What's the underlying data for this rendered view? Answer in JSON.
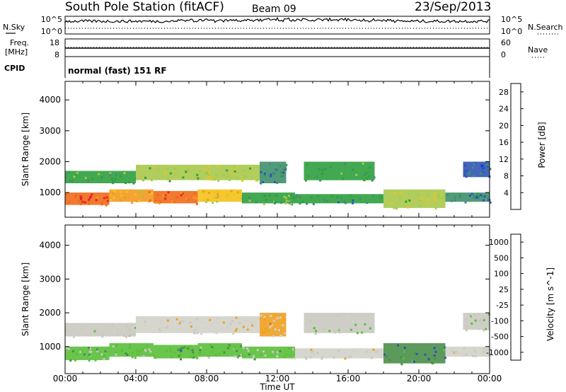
{
  "header": {
    "station": "South Pole Station (fitACF)",
    "beam": "Beam 09",
    "date": "23/Sep/2013"
  },
  "noise_panel": {
    "left_label": "N.Sky",
    "right_label": "N.Search",
    "left_ticks": [
      "10^5",
      "10^0"
    ],
    "right_ticks": [
      "10^5",
      "10^0"
    ]
  },
  "freq_panel": {
    "left_label_1": "Freq.",
    "left_label_2": "[MHz]",
    "right_label": "Nave",
    "left_ticks": [
      "18",
      "8"
    ],
    "right_ticks": [
      "60",
      "0"
    ]
  },
  "cpid": {
    "label": "CPID",
    "program": "normal (fast) 151 RF"
  },
  "x_axis": {
    "label": "Time UT",
    "ticks": [
      "00:00",
      "04:00",
      "08:00",
      "12:00",
      "16:00",
      "20:00",
      "00:00"
    ]
  },
  "colors": {
    "power": [
      "#1530e8",
      "#2f55b5",
      "#3f8f6e",
      "#2f9e3f",
      "#a8c94a",
      "#f2c21a",
      "#f39a1f",
      "#ef6a1a",
      "#e52222"
    ],
    "velocity": [
      "#1530e8",
      "#2f55b5",
      "#4a8f4a",
      "#5abf3a",
      "#c9c9c0",
      "#d2d2ca",
      "#f0a020",
      "#ef6a1a",
      "#e52222"
    ]
  },
  "chart_data": [
    {
      "type": "heatmap",
      "title": "",
      "xlabel": "",
      "ylabel": "Slant Range [km]",
      "yticks": [
        "1000",
        "2000",
        "3000",
        "4000"
      ],
      "ylim": [
        200,
        4600
      ],
      "xlim_hours": [
        0,
        24
      ],
      "colorbar": {
        "label": "Power [dB]",
        "ticks": [
          "4",
          "8",
          "12",
          "16",
          "20",
          "24",
          "28"
        ],
        "range": [
          0,
          30
        ]
      },
      "echo_bands": [
        {
          "t0": 0.0,
          "t1": 2.5,
          "r0": 600,
          "r1": 1000,
          "value": 26
        },
        {
          "t0": 2.5,
          "t1": 5.0,
          "r0": 700,
          "r1": 1100,
          "value": 20
        },
        {
          "t0": 5.0,
          "t1": 7.5,
          "r0": 650,
          "r1": 1050,
          "value": 24
        },
        {
          "t0": 7.5,
          "t1": 10.0,
          "r0": 700,
          "r1": 1100,
          "value": 18
        },
        {
          "t0": 10.0,
          "t1": 13.0,
          "r0": 650,
          "r1": 1000,
          "value": 12
        },
        {
          "t0": 13.0,
          "t1": 18.0,
          "r0": 650,
          "r1": 950,
          "value": 10
        },
        {
          "t0": 18.0,
          "t1": 21.5,
          "r0": 500,
          "r1": 1100,
          "value": 16
        },
        {
          "t0": 21.5,
          "t1": 24.0,
          "r0": 700,
          "r1": 1000,
          "value": 8
        },
        {
          "t0": 0.0,
          "t1": 4.0,
          "r0": 1300,
          "r1": 1700,
          "value": 12
        },
        {
          "t0": 4.0,
          "t1": 8.0,
          "r0": 1400,
          "r1": 1900,
          "value": 14
        },
        {
          "t0": 8.0,
          "t1": 11.0,
          "r0": 1400,
          "r1": 1900,
          "value": 16
        },
        {
          "t0": 11.0,
          "t1": 12.5,
          "r0": 1300,
          "r1": 2000,
          "value": 8
        },
        {
          "t0": 13.5,
          "t1": 17.5,
          "r0": 1400,
          "r1": 2000,
          "value": 12
        },
        {
          "t0": 22.5,
          "t1": 24.0,
          "r0": 1500,
          "r1": 2000,
          "value": 6
        }
      ]
    },
    {
      "type": "heatmap",
      "title": "",
      "xlabel": "Time UT",
      "ylabel": "Slant Range [km]",
      "yticks": [
        "1000",
        "2000",
        "3000",
        "4000"
      ],
      "ylim": [
        200,
        4600
      ],
      "xlim_hours": [
        0,
        24
      ],
      "colorbar": {
        "label": "Velocity [m s^-1]",
        "ticks": [
          "1000",
          "500",
          "100",
          "25",
          "-25",
          "-100",
          "-500",
          "-1000"
        ],
        "range": [
          -1200,
          1200
        ]
      },
      "echo_bands": [
        {
          "t0": 0.0,
          "t1": 2.5,
          "r0": 600,
          "r1": 1000,
          "value": -300
        },
        {
          "t0": 2.5,
          "t1": 5.0,
          "r0": 700,
          "r1": 1100,
          "value": -200
        },
        {
          "t0": 5.0,
          "t1": 7.5,
          "r0": 650,
          "r1": 1050,
          "value": -400
        },
        {
          "t0": 7.5,
          "t1": 10.0,
          "r0": 700,
          "r1": 1100,
          "value": -300
        },
        {
          "t0": 10.0,
          "t1": 13.0,
          "r0": 650,
          "r1": 1000,
          "value": -150
        },
        {
          "t0": 13.0,
          "t1": 18.0,
          "r0": 650,
          "r1": 950,
          "value": 200
        },
        {
          "t0": 18.0,
          "t1": 21.5,
          "r0": 500,
          "r1": 1100,
          "value": -600
        },
        {
          "t0": 21.5,
          "t1": 24.0,
          "r0": 700,
          "r1": 1000,
          "value": 150
        },
        {
          "t0": 0.0,
          "t1": 4.0,
          "r0": 1300,
          "r1": 1700,
          "value": 0
        },
        {
          "t0": 4.0,
          "t1": 8.0,
          "r0": 1400,
          "r1": 1900,
          "value": 200
        },
        {
          "t0": 8.0,
          "t1": 11.0,
          "r0": 1400,
          "r1": 1900,
          "value": 300
        },
        {
          "t0": 11.0,
          "t1": 12.5,
          "r0": 1300,
          "r1": 2000,
          "value": 400
        },
        {
          "t0": 13.5,
          "t1": 17.5,
          "r0": 1400,
          "r1": 2000,
          "value": 0
        },
        {
          "t0": 22.5,
          "t1": 24.0,
          "r0": 1500,
          "r1": 2000,
          "value": 0
        }
      ]
    }
  ]
}
